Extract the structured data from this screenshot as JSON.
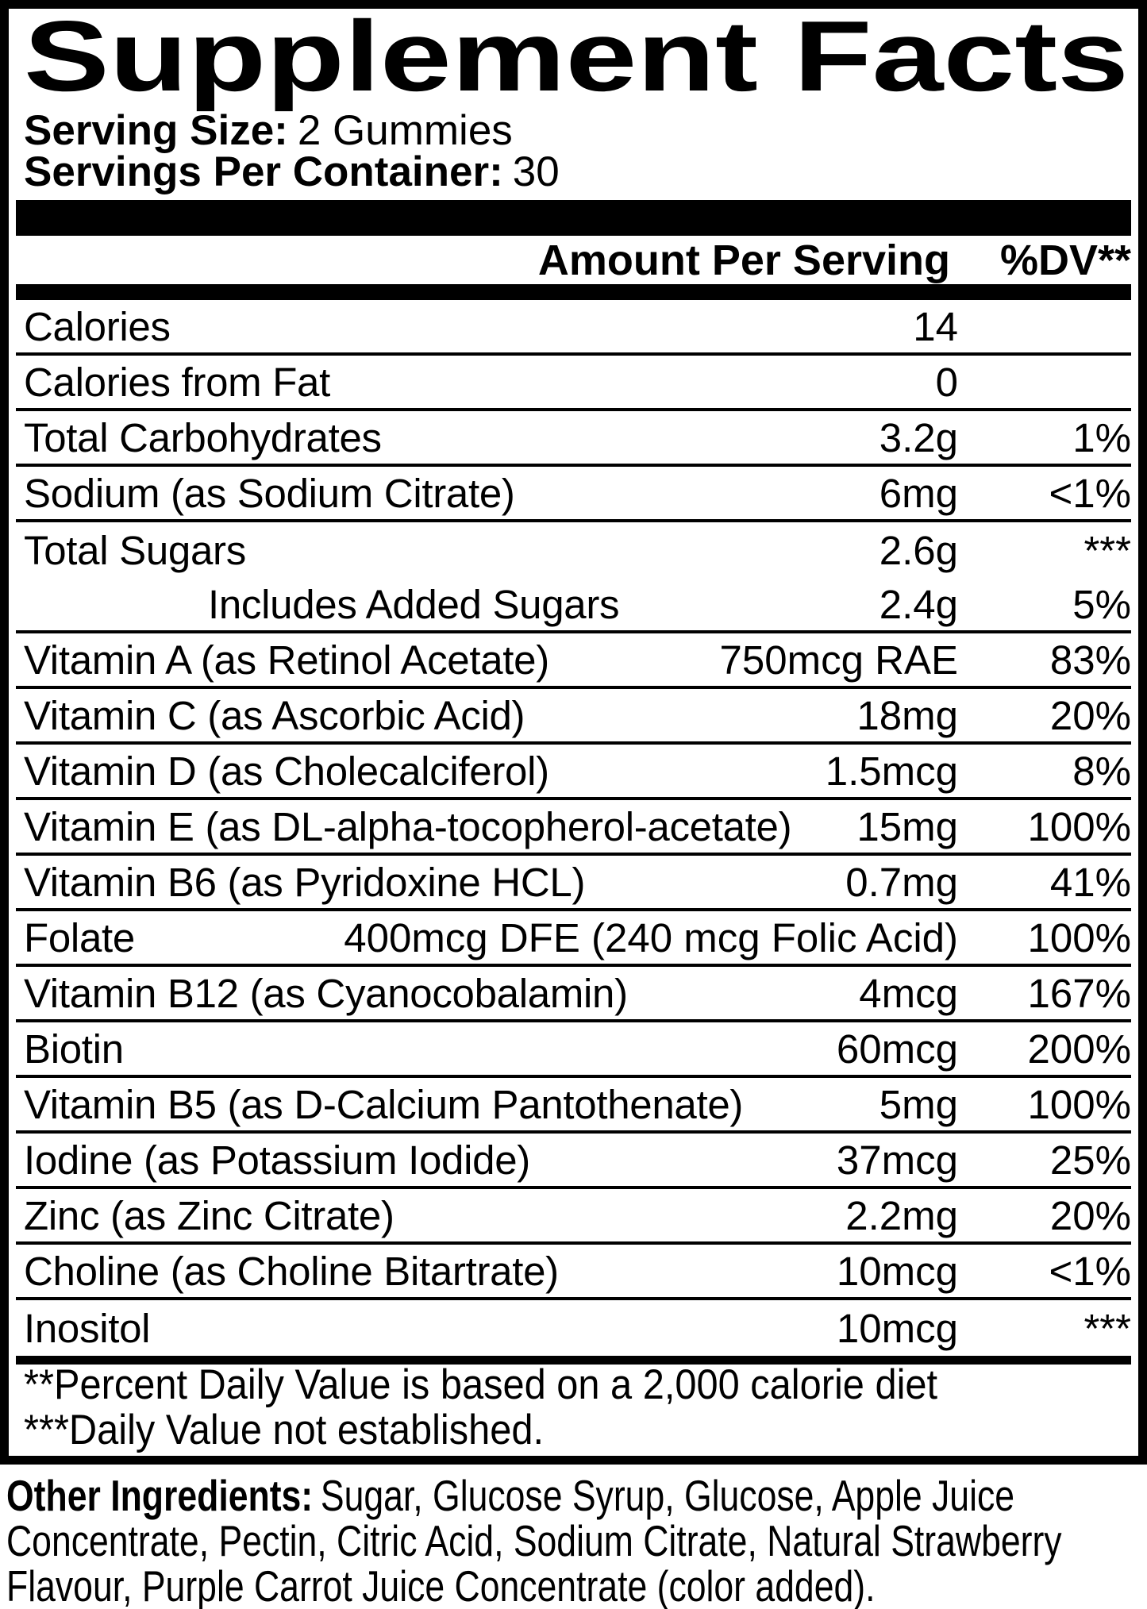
{
  "title": "Supplement Facts",
  "serving": {
    "size_label": "Serving Size:",
    "size_value": "2 Gummies",
    "container_label": "Servings Per Container:",
    "container_value": "30"
  },
  "header": {
    "amount_label": "Amount Per Serving",
    "dv_label": "%DV**"
  },
  "rows": [
    {
      "name": "Calories",
      "amount": "14",
      "dv": ""
    },
    {
      "name": "Calories from Fat",
      "amount": "0",
      "dv": ""
    },
    {
      "name": "Total Carbohydrates",
      "amount": "3.2g",
      "dv": "1%"
    },
    {
      "name": "Sodium (as Sodium Citrate)",
      "amount": "6mg",
      "dv": "<1%"
    },
    {
      "name": "Total Sugars",
      "amount": "2.6g",
      "dv": "***"
    },
    {
      "name": "Includes Added Sugars",
      "amount": "2.4g",
      "dv": "5%"
    },
    {
      "name": "Vitamin A (as Retinol Acetate)",
      "amount": "750mcg RAE",
      "dv": "83%"
    },
    {
      "name": "Vitamin C (as Ascorbic Acid)",
      "amount": "18mg",
      "dv": "20%"
    },
    {
      "name": "Vitamin D (as Cholecalciferol)",
      "amount": "1.5mcg",
      "dv": "8%"
    },
    {
      "name": "Vitamin E (as DL-alpha-tocopherol-acetate)",
      "amount": "15mg",
      "dv": "100%"
    },
    {
      "name": "Vitamin B6 (as Pyridoxine HCL)",
      "amount": "0.7mg",
      "dv": "41%"
    },
    {
      "name": "Folate",
      "amount": "400mcg DFE (240 mcg Folic Acid)",
      "dv": "100%"
    },
    {
      "name": "Vitamin B12 (as Cyanocobalamin)",
      "amount": "4mcg",
      "dv": "167%"
    },
    {
      "name": "Biotin",
      "amount": "60mcg",
      "dv": "200%"
    },
    {
      "name": "Vitamin B5 (as D-Calcium Pantothenate)",
      "amount": "5mg",
      "dv": "100%"
    },
    {
      "name": "Iodine (as Potassium Iodide)",
      "amount": "37mcg",
      "dv": "25%"
    },
    {
      "name": "Zinc (as Zinc Citrate)",
      "amount": "2.2mg",
      "dv": "20%"
    },
    {
      "name": "Choline (as Choline Bitartrate)",
      "amount": "10mcg",
      "dv": "<1%"
    },
    {
      "name": "Inositol",
      "amount": "10mcg",
      "dv": "***"
    }
  ],
  "footnotes": {
    "line1": "**Percent Daily Value is based on a 2,000 calorie diet",
    "line2": "***Daily Value not established."
  },
  "other_ingredients": {
    "label": "Other Ingredients:",
    "lines": [
      "Sugar, Glucose Syrup, Glucose, Apple Juice",
      "Concentrate, Pectin, Citric Acid, Sodium Citrate, Natural Strawberry",
      "Flavour, Purple Carrot Juice Concentrate (color added)."
    ]
  },
  "colors": {
    "ink": "#000000",
    "paper": "#ffffff"
  }
}
